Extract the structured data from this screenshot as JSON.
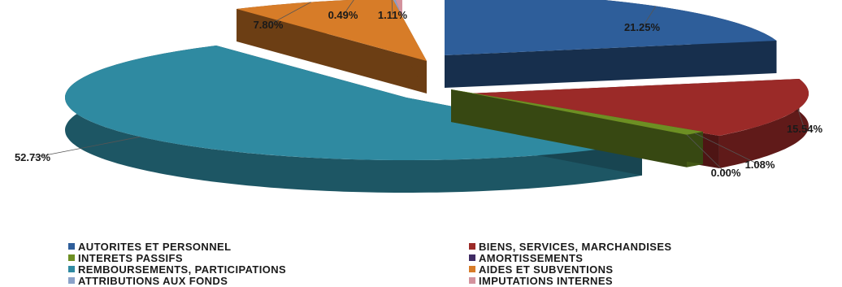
{
  "chart_data": {
    "type": "pie",
    "style": "3d-exploded",
    "title": "",
    "legend_position": "bottom",
    "series": [
      {
        "name": "AUTORITES ET PERSONNEL",
        "value": 21.25,
        "label": "21.25%",
        "color": "#2e5e9a"
      },
      {
        "name": "BIENS, SERVICES, MARCHANDISES",
        "value": 15.54,
        "label": "15.54%",
        "color": "#9b2a28"
      },
      {
        "name": "INTERETS PASSIFS",
        "value": 1.08,
        "label": "1.08%",
        "color": "#6d8f23"
      },
      {
        "name": "AMORTISSEMENTS",
        "value": 0.0,
        "label": "0.00%",
        "color": "#3f2b64"
      },
      {
        "name": "REMBOURSEMENTS, PARTICIPATIONS",
        "value": 52.73,
        "label": "52.73%",
        "color": "#2f8aa1"
      },
      {
        "name": "AIDES ET SUBVENTIONS",
        "value": 7.8,
        "label": "7.80%",
        "color": "#d77c28"
      },
      {
        "name": "ATTRIBUTIONS AUX FONDS",
        "value": 0.49,
        "label": "0.49%",
        "color": "#8aa2c9"
      },
      {
        "name": "IMPUTATIONS INTERNES",
        "value": 1.11,
        "label": "1.11%",
        "color": "#d3929d"
      }
    ]
  }
}
